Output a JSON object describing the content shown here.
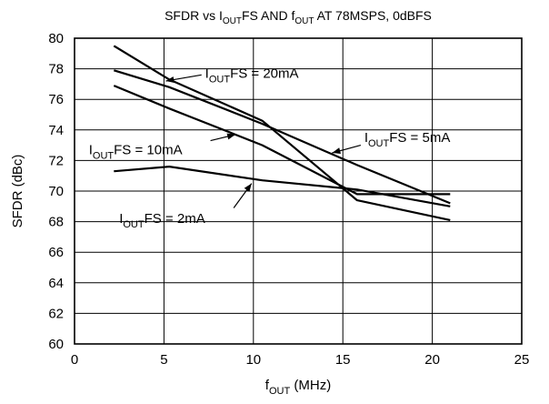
{
  "chart_data": {
    "type": "line",
    "title": {
      "parts": [
        {
          "text": "SFDR vs I"
        },
        {
          "text": "OUT",
          "sub": true
        },
        {
          "text": "FS AND f"
        },
        {
          "text": "OUT",
          "sub": true
        },
        {
          "text": " AT 78MSPS, 0dBFS"
        }
      ]
    },
    "xlabel": {
      "parts": [
        {
          "text": "f"
        },
        {
          "text": "OUT",
          "sub": true
        },
        {
          "text": " (MHz)"
        }
      ]
    },
    "ylabel": "SFDR (dBc)",
    "xlim": [
      0,
      25
    ],
    "ylim": [
      60,
      80
    ],
    "x_ticks": [
      0,
      5,
      10,
      15,
      20,
      25
    ],
    "y_ticks": [
      60,
      62,
      64,
      66,
      68,
      70,
      72,
      74,
      76,
      78,
      80
    ],
    "grid": true,
    "series": [
      {
        "name": "IOUTFS = 20mA",
        "x": [
          2.2,
          5.3,
          10.5,
          15.8,
          21.0
        ],
        "y": [
          79.5,
          77.3,
          74.6,
          69.4,
          68.1
        ]
      },
      {
        "name": "IOUTFS = 10mA",
        "x": [
          2.2,
          5.3,
          10.5,
          15.8,
          21.0
        ],
        "y": [
          76.9,
          75.4,
          73.0,
          69.8,
          69.8
        ]
      },
      {
        "name": "IOUTFS = 5mA",
        "x": [
          2.2,
          5.3,
          10.5,
          15.8,
          21.0
        ],
        "y": [
          77.9,
          76.8,
          74.4,
          71.7,
          69.2
        ]
      },
      {
        "name": "IOUTFS = 2mA",
        "x": [
          2.2,
          5.3,
          10.5,
          15.8,
          21.0
        ],
        "y": [
          71.3,
          71.6,
          70.7,
          70.1,
          69.0
        ]
      }
    ],
    "annotations": [
      {
        "series": "IOUTFS = 20mA",
        "parts": [
          {
            "text": "I"
          },
          {
            "text": "OUT",
            "sub": true
          },
          {
            "text": "FS = 20mA"
          }
        ],
        "label_at": [
          7.3,
          77.7
        ],
        "arrow_from": [
          7.1,
          77.6
        ],
        "arrow_to": [
          5.1,
          77.2
        ]
      },
      {
        "series": "IOUTFS = 10mA",
        "parts": [
          {
            "text": "I"
          },
          {
            "text": "OUT",
            "sub": true
          },
          {
            "text": "FS = 10mA"
          }
        ],
        "label_at": [
          0.8,
          72.7
        ],
        "arrow_from": [
          7.6,
          73.3
        ],
        "arrow_to": [
          9.0,
          73.7
        ]
      },
      {
        "series": "IOUTFS = 5mA",
        "parts": [
          {
            "text": "I"
          },
          {
            "text": "OUT",
            "sub": true
          },
          {
            "text": "FS = 5mA"
          }
        ],
        "label_at": [
          16.2,
          73.5
        ],
        "arrow_from": [
          16.0,
          73.0
        ],
        "arrow_to": [
          14.4,
          72.5
        ]
      },
      {
        "series": "IOUTFS = 2mA",
        "parts": [
          {
            "text": "I"
          },
          {
            "text": "OUT",
            "sub": true
          },
          {
            "text": "FS = 2mA"
          }
        ],
        "label_at": [
          2.5,
          68.2
        ],
        "arrow_from": [
          8.9,
          68.9
        ],
        "arrow_to": [
          9.9,
          70.5
        ]
      }
    ]
  }
}
